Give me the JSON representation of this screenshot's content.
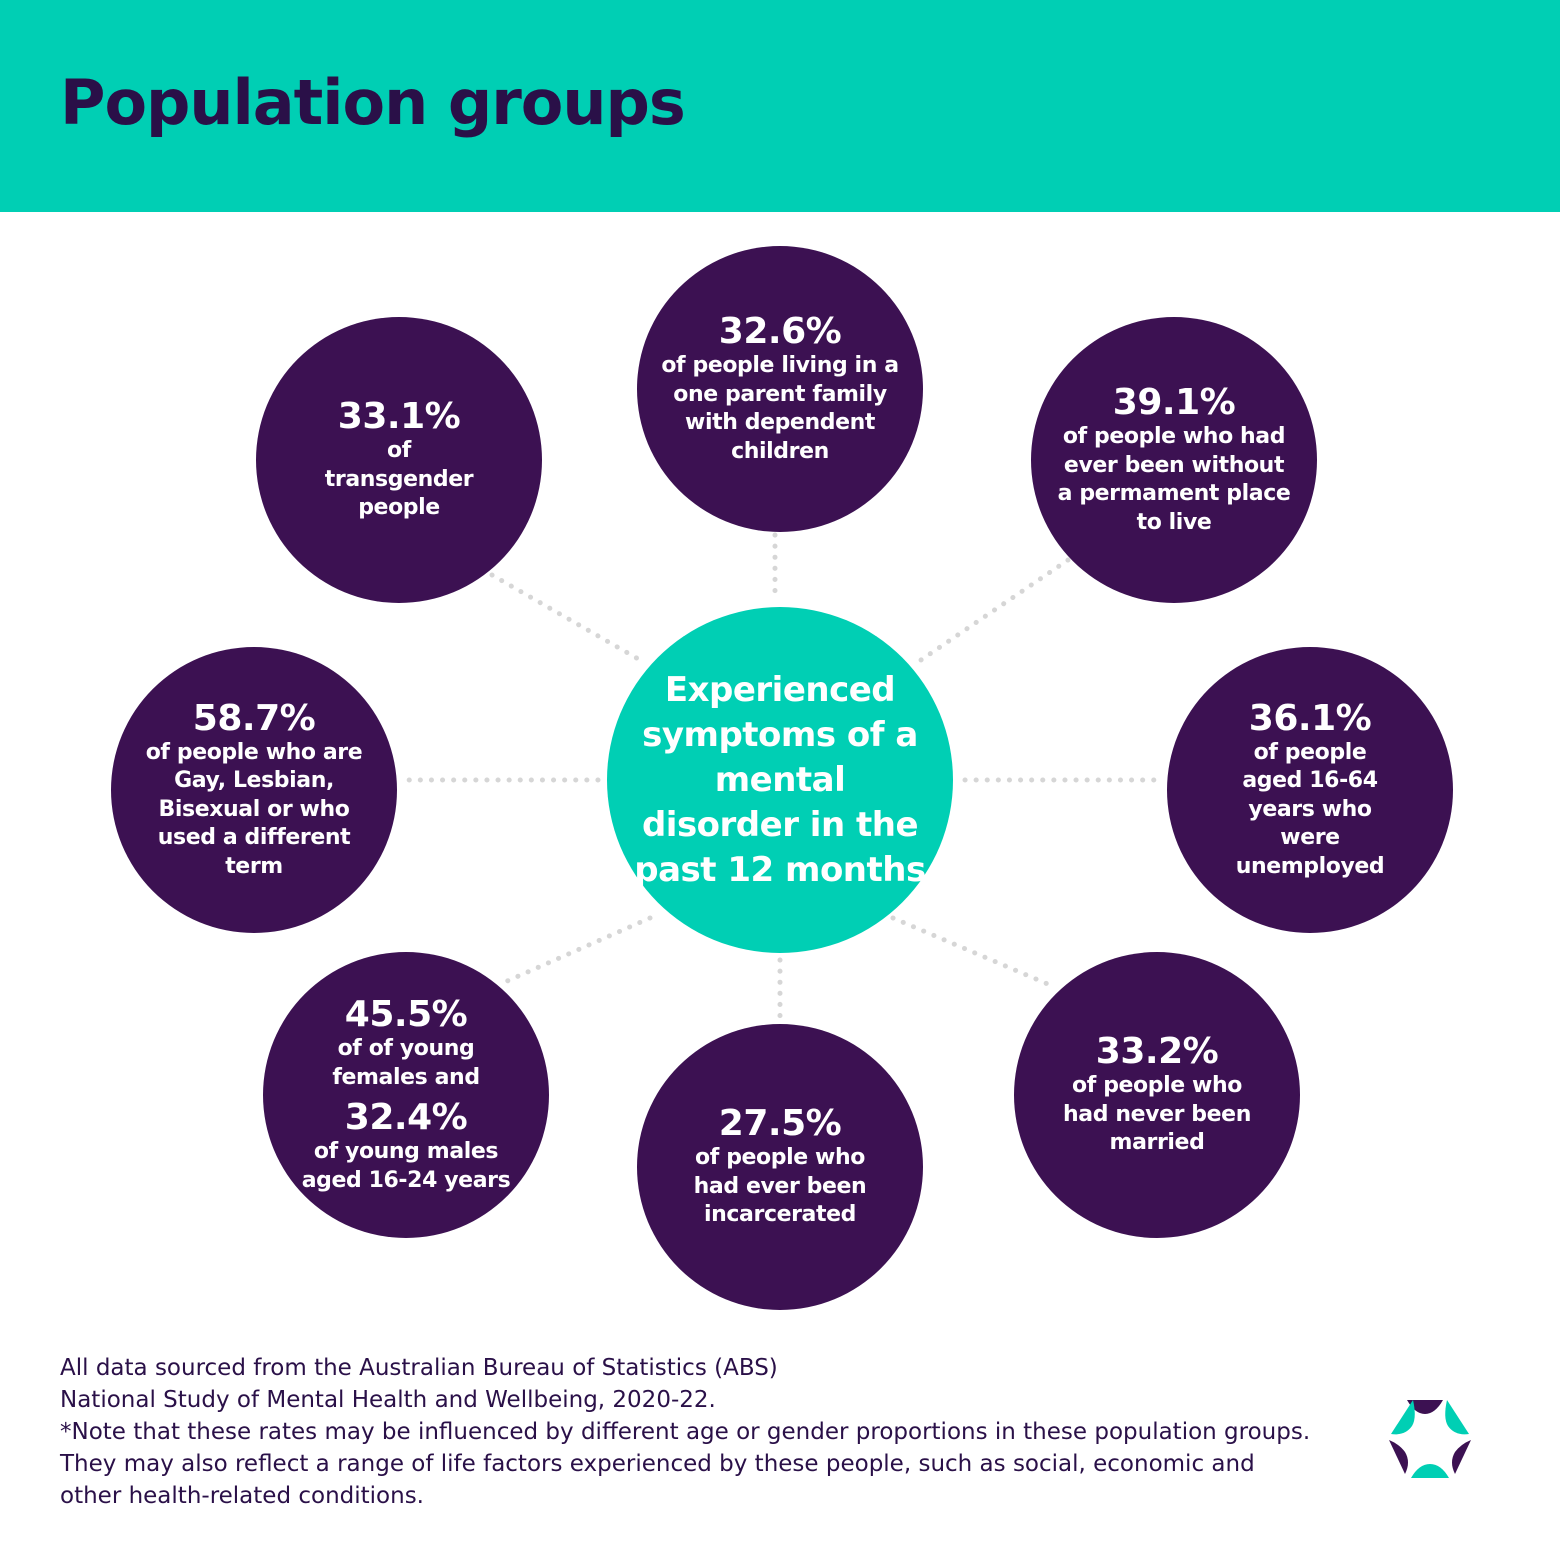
{
  "header": {
    "title": "Population groups"
  },
  "center": {
    "text": "Experienced symptoms of a mental disorder in the past 12 months"
  },
  "groups": [
    {
      "id": "transgender",
      "pct": "33.1%",
      "desc": "of transgender people"
    },
    {
      "id": "one-parent",
      "pct": "32.6%",
      "desc": "of people living in a one parent family with dependent children"
    },
    {
      "id": "homeless",
      "pct": "39.1%",
      "desc": "of people who had ever been without a permament place to live"
    },
    {
      "id": "unemployed",
      "pct": "36.1%",
      "desc": "of people aged 16-64 years who were unemployed"
    },
    {
      "id": "never-married",
      "pct": "33.2%",
      "desc": "of people who had never been married"
    },
    {
      "id": "incarcerated",
      "pct": "27.5%",
      "desc": "of people who had ever been incarcerated"
    },
    {
      "id": "young",
      "pct": "45.5%",
      "desc": "of of young females and",
      "pct2": "32.4%",
      "desc2": "of young males aged 16-24 years"
    },
    {
      "id": "lgb",
      "pct": "58.7%",
      "desc": "of people who are Gay, Lesbian, Bisexual or who used a different term"
    }
  ],
  "footer": {
    "source_line1": "All data sourced from the Australian Bureau of Statistics (ABS)",
    "source_line2": "National Study of Mental Health and Wellbeing, 2020-22.",
    "note": "*Note that these rates may be influenced by different age or gender proportions in these population groups. They may also reflect a range of life factors experienced by these people, such as social, economic and other health-related conditions."
  },
  "colors": {
    "teal": "#00cfb4",
    "purple": "#3c1152",
    "title_text": "#2a1048",
    "connector": "#d6d6d6"
  },
  "logo": {
    "icon": "organisation-logo-icon"
  }
}
